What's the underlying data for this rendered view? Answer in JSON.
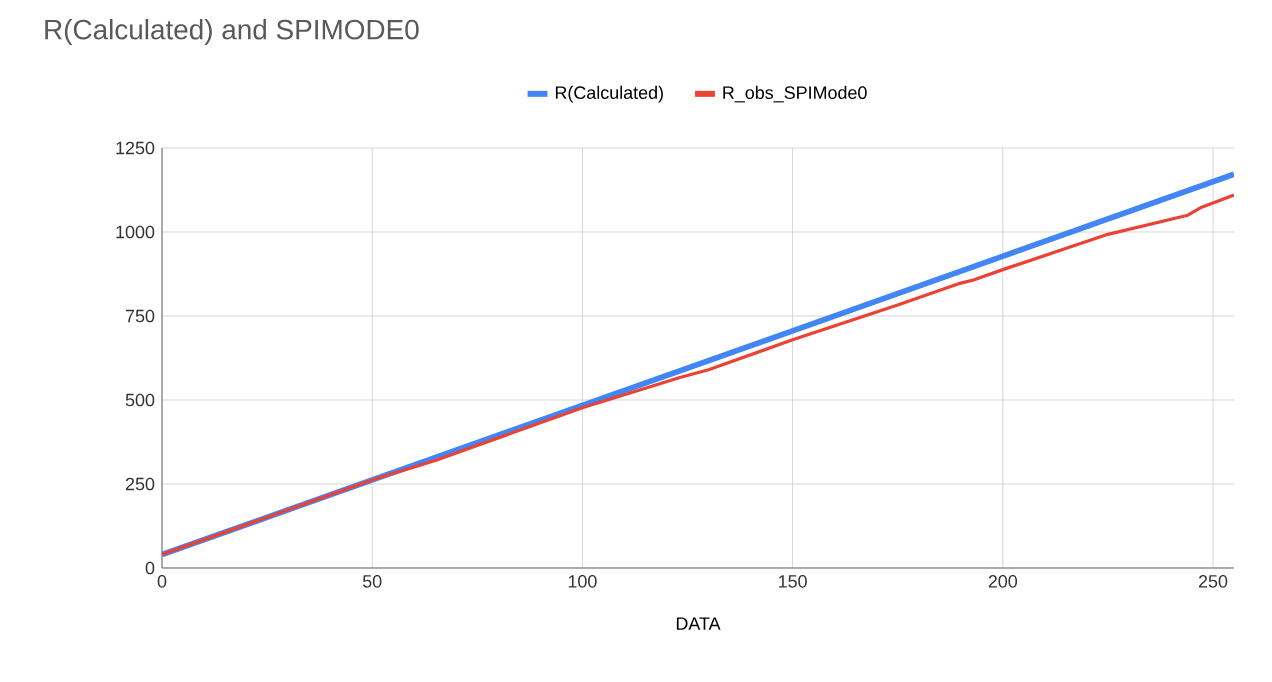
{
  "chart_data": {
    "type": "line",
    "title": "R(Calculated) and SPIMODE0",
    "xlabel": "DATA",
    "series": [
      {
        "name": "R(Calculated)",
        "color": "#4285f4",
        "x": [
          0,
          255
        ],
        "values": [
          40,
          1172
        ]
      },
      {
        "name": "R_obs_SPIMode0",
        "color": "#ea4335",
        "x": [
          0,
          50,
          65,
          100,
          123,
          130,
          150,
          175,
          190,
          193,
          200,
          225,
          244,
          247,
          255
        ],
        "values": [
          40,
          262,
          320,
          477,
          566,
          590,
          679,
          783,
          848,
          857,
          888,
          993,
          1050,
          1072,
          1110
        ]
      }
    ],
    "xlim": [
      0,
      255
    ],
    "xticks": [
      0,
      50,
      100,
      150,
      200,
      250
    ],
    "ylim": [
      0,
      1250
    ],
    "yticks": [
      0,
      250,
      500,
      750,
      1000,
      1250
    ],
    "grid": true,
    "legend": "top",
    "marker": "none",
    "line_style": "solid"
  }
}
